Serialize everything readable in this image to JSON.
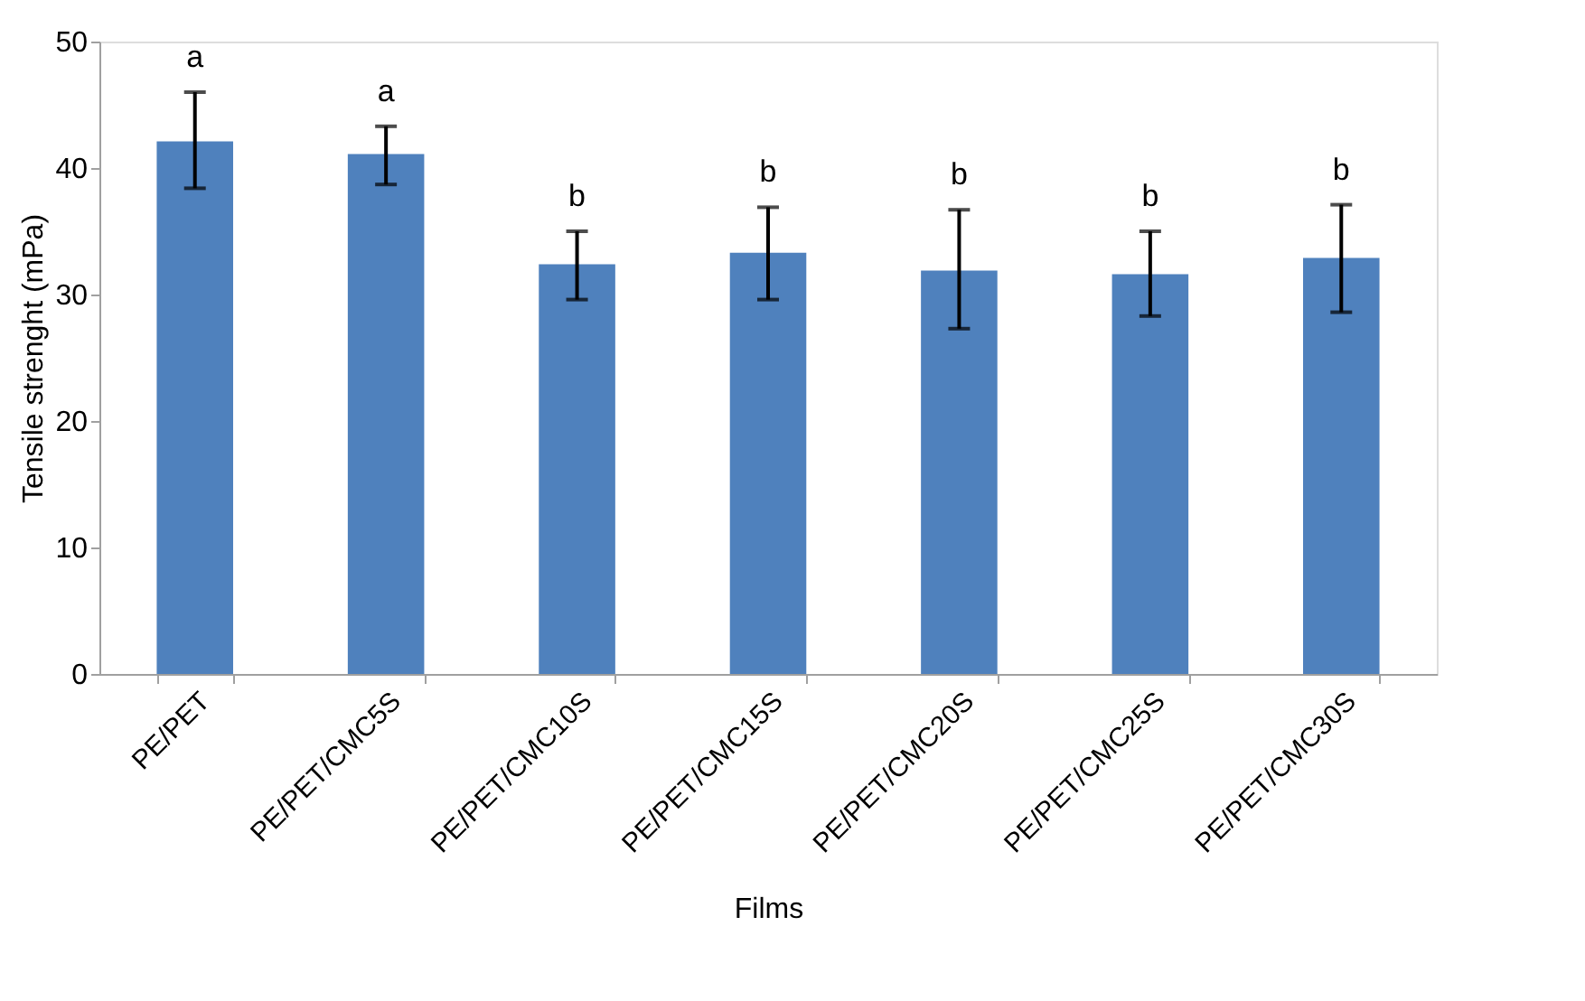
{
  "chart_data": {
    "type": "bar",
    "xlabel": "Films",
    "ylabel": "Tensile strenght (mPa)",
    "categories": [
      "PE/PET",
      "PE/PET/CMC5S",
      "PE/PET/CMC10S",
      "PE/PET/CMC15S",
      "PE/PET/CMC20S",
      "PE/PET/CMC25S",
      "PE/PET/CMC30S"
    ],
    "values": [
      42.1,
      41.1,
      32.4,
      33.3,
      31.9,
      31.6,
      32.9
    ],
    "errors": [
      [
        38.4,
        46.0
      ],
      [
        38.7,
        43.3
      ],
      [
        29.6,
        35.0
      ],
      [
        29.6,
        36.9
      ],
      [
        27.3,
        36.7
      ],
      [
        28.3,
        35.0
      ],
      [
        28.6,
        37.1
      ]
    ],
    "color": "#4f81bd",
    "ylim": [
      0,
      50
    ],
    "yticks": [
      0,
      10,
      20,
      30,
      40,
      50
    ],
    "grid": false,
    "annotations": [
      "a",
      "a",
      "b",
      "b",
      "b",
      "b",
      "b"
    ]
  }
}
